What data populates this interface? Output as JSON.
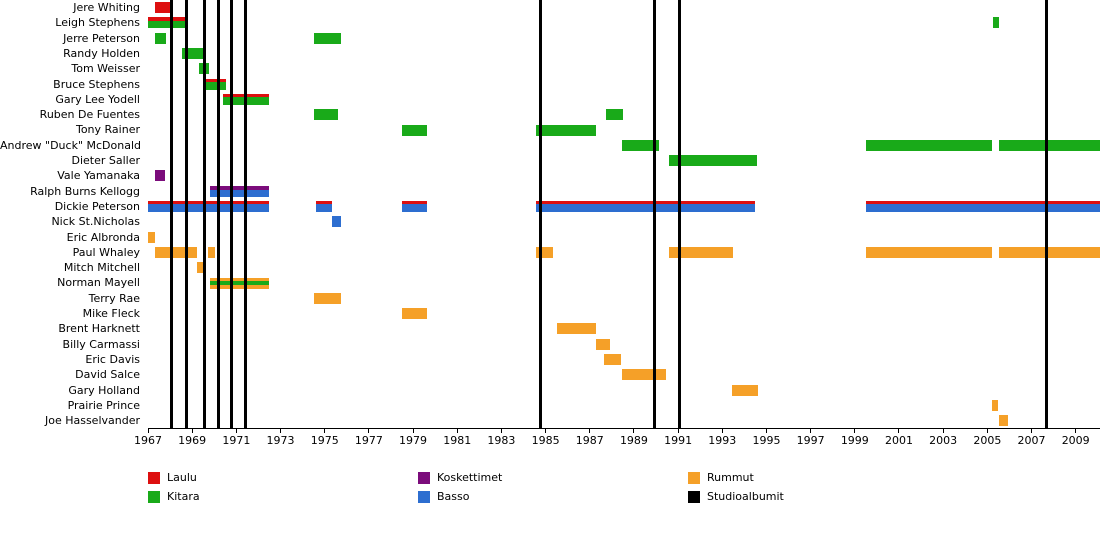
{
  "chart_data": {
    "type": "bar",
    "variant": "band-members-timeline",
    "x_axis": {
      "min": 1967,
      "max": 2010.1,
      "ticks": [
        1967,
        1969,
        1971,
        1973,
        1975,
        1977,
        1979,
        1981,
        1983,
        1985,
        1987,
        1989,
        1991,
        1993,
        1995,
        1997,
        1999,
        2001,
        2003,
        2005,
        2007,
        2009
      ]
    },
    "colors": {
      "red": "#dd0f0f",
      "green": "#19aa19",
      "purple": "#7b0c7b",
      "blue": "#2d6ed0",
      "orange": "#f5a028",
      "black": "#000000"
    },
    "legend": [
      {
        "label": "Laulu",
        "color": "red",
        "col": 0,
        "row": 0
      },
      {
        "label": "Kitara",
        "color": "green",
        "col": 0,
        "row": 1
      },
      {
        "label": "Koskettimet",
        "color": "purple",
        "col": 1,
        "row": 0
      },
      {
        "label": "Basso",
        "color": "blue",
        "col": 1,
        "row": 1
      },
      {
        "label": "Rummut",
        "color": "orange",
        "col": 2,
        "row": 0
      },
      {
        "label": "Studioalbumit",
        "color": "black",
        "col": 2,
        "row": 1
      }
    ],
    "album_lines": [
      1968.05,
      1968.75,
      1969.58,
      1970.17,
      1970.8,
      1971.4,
      1984.75,
      1989.95,
      1991.08,
      2007.7
    ],
    "rows": [
      {
        "name": "Jere Whiting",
        "bars": [
          [
            1967.3,
            1968.0,
            [
              [
                "red",
                1
              ]
            ]
          ]
        ]
      },
      {
        "name": "Leigh Stephens",
        "bars": [
          [
            1967.0,
            1968.75,
            [
              [
                "red",
                0.32
              ],
              [
                "green",
                0.68
              ]
            ]
          ],
          [
            2005.25,
            2005.55,
            [
              [
                "green",
                1
              ]
            ]
          ]
        ]
      },
      {
        "name": "Jerre Peterson",
        "bars": [
          [
            1967.3,
            1967.8,
            [
              [
                "green",
                1
              ]
            ]
          ],
          [
            1974.5,
            1975.75,
            [
              [
                "green",
                1
              ]
            ]
          ]
        ]
      },
      {
        "name": "Randy Holden",
        "bars": [
          [
            1968.55,
            1969.5,
            [
              [
                "green",
                1
              ]
            ]
          ]
        ]
      },
      {
        "name": "Tom Weisser",
        "bars": [
          [
            1969.3,
            1969.75,
            [
              [
                "green",
                1
              ]
            ]
          ]
        ]
      },
      {
        "name": "Bruce Stephens",
        "bars": [
          [
            1969.6,
            1970.55,
            [
              [
                "red",
                0.32
              ],
              [
                "green",
                0.68
              ]
            ]
          ]
        ]
      },
      {
        "name": "Gary Lee Yodell",
        "bars": [
          [
            1970.4,
            1972.5,
            [
              [
                "red",
                0.32
              ],
              [
                "green",
                0.68
              ]
            ]
          ]
        ]
      },
      {
        "name": "Ruben De Fuentes",
        "bars": [
          [
            1974.5,
            1975.6,
            [
              [
                "green",
                1
              ]
            ]
          ],
          [
            1987.75,
            1988.5,
            [
              [
                "green",
                1
              ]
            ]
          ]
        ]
      },
      {
        "name": "Tony Rainer",
        "bars": [
          [
            1978.5,
            1979.65,
            [
              [
                "green",
                1
              ]
            ]
          ],
          [
            1984.55,
            1987.3,
            [
              [
                "green",
                1
              ]
            ]
          ]
        ]
      },
      {
        "name": "Andrew \"Duck\" McDonald",
        "bars": [
          [
            1988.45,
            1990.15,
            [
              [
                "green",
                1
              ]
            ]
          ],
          [
            1999.5,
            2005.2,
            [
              [
                "green",
                1
              ]
            ]
          ],
          [
            2005.55,
            2010.1,
            [
              [
                "green",
                1
              ]
            ]
          ]
        ]
      },
      {
        "name": "Dieter Saller",
        "bars": [
          [
            1990.6,
            1994.55,
            [
              [
                "green",
                1
              ]
            ]
          ]
        ]
      },
      {
        "name": "Vale Yamanaka",
        "bars": [
          [
            1967.3,
            1967.75,
            [
              [
                "purple",
                1
              ]
            ]
          ]
        ]
      },
      {
        "name": "Ralph Burns Kellogg",
        "bars": [
          [
            1969.8,
            1972.5,
            [
              [
                "purple",
                0.4
              ],
              [
                "blue",
                0.6
              ]
            ]
          ]
        ]
      },
      {
        "name": "Dickie Peterson",
        "bars": [
          [
            1967.0,
            1972.5,
            [
              [
                "red",
                0.3
              ],
              [
                "blue",
                0.7
              ]
            ]
          ],
          [
            1974.6,
            1975.35,
            [
              [
                "red",
                0.3
              ],
              [
                "blue",
                0.7
              ]
            ]
          ],
          [
            1978.5,
            1979.65,
            [
              [
                "red",
                0.3
              ],
              [
                "blue",
                0.7
              ]
            ]
          ],
          [
            1984.55,
            1994.5,
            [
              [
                "red",
                0.3
              ],
              [
                "blue",
                0.7
              ]
            ]
          ],
          [
            1999.5,
            2010.1,
            [
              [
                "red",
                0.3
              ],
              [
                "blue",
                0.7
              ]
            ]
          ]
        ]
      },
      {
        "name": "Nick St.Nicholas",
        "bars": [
          [
            1975.35,
            1975.75,
            [
              [
                "blue",
                1
              ]
            ]
          ]
        ]
      },
      {
        "name": "Eric Albronda",
        "bars": [
          [
            1967.0,
            1967.3,
            [
              [
                "orange",
                1
              ]
            ]
          ]
        ]
      },
      {
        "name": "Paul Whaley",
        "bars": [
          [
            1967.3,
            1969.2,
            [
              [
                "orange",
                1
              ]
            ]
          ],
          [
            1969.7,
            1970.05,
            [
              [
                "orange",
                1
              ]
            ]
          ],
          [
            1984.55,
            1985.35,
            [
              [
                "orange",
                1
              ]
            ]
          ],
          [
            1990.6,
            1993.5,
            [
              [
                "orange",
                1
              ]
            ]
          ],
          [
            1999.5,
            2005.2,
            [
              [
                "orange",
                1
              ]
            ]
          ],
          [
            2005.55,
            2010.1,
            [
              [
                "orange",
                1
              ]
            ]
          ]
        ]
      },
      {
        "name": "Mitch Mitchell",
        "bars": [
          [
            1969.2,
            1969.55,
            [
              [
                "orange",
                1
              ]
            ]
          ]
        ]
      },
      {
        "name": "Norman Mayell",
        "bars": [
          [
            1969.8,
            1972.5,
            [
              [
                "orange",
                0.34
              ],
              [
                "green",
                0.3
              ],
              [
                "orange",
                0.36
              ]
            ]
          ]
        ]
      },
      {
        "name": "Terry Rae",
        "bars": [
          [
            1974.5,
            1975.75,
            [
              [
                "orange",
                1
              ]
            ]
          ]
        ]
      },
      {
        "name": "Mike Fleck",
        "bars": [
          [
            1978.5,
            1979.65,
            [
              [
                "orange",
                1
              ]
            ]
          ]
        ]
      },
      {
        "name": "Brent Harknett",
        "bars": [
          [
            1985.5,
            1987.3,
            [
              [
                "orange",
                1
              ]
            ]
          ]
        ]
      },
      {
        "name": "Billy Carmassi",
        "bars": [
          [
            1987.3,
            1987.9,
            [
              [
                "orange",
                1
              ]
            ]
          ]
        ]
      },
      {
        "name": "Eric Davis",
        "bars": [
          [
            1987.65,
            1988.4,
            [
              [
                "orange",
                1
              ]
            ]
          ]
        ]
      },
      {
        "name": "David Salce",
        "bars": [
          [
            1988.45,
            1990.45,
            [
              [
                "orange",
                1
              ]
            ]
          ]
        ]
      },
      {
        "name": "Gary Holland",
        "bars": [
          [
            1993.45,
            1994.6,
            [
              [
                "orange",
                1
              ]
            ]
          ]
        ]
      },
      {
        "name": "Prairie Prince",
        "bars": [
          [
            2005.2,
            2005.5,
            [
              [
                "orange",
                1
              ]
            ]
          ]
        ]
      },
      {
        "name": "Joe Hasselvander",
        "bars": [
          [
            2005.55,
            2005.95,
            [
              [
                "orange",
                1
              ]
            ]
          ]
        ]
      }
    ]
  }
}
